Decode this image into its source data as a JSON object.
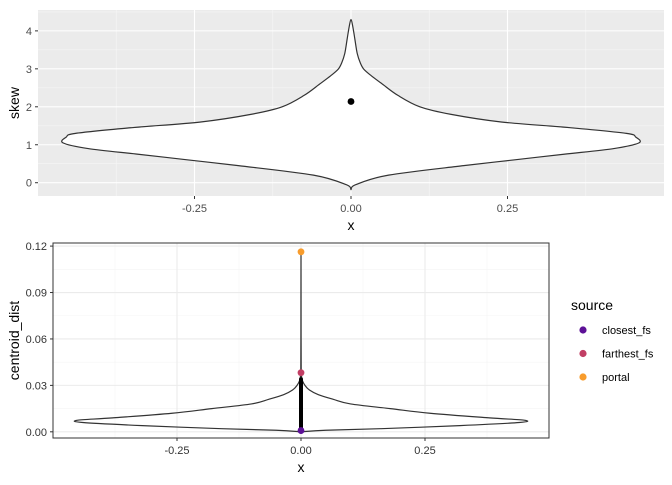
{
  "chart_data": [
    {
      "type": "violin",
      "xlabel": "x",
      "ylabel": "skew",
      "xlim": [
        -0.5,
        0.5
      ],
      "ylim": [
        -0.35,
        4.55
      ],
      "x_ticks": [
        -0.25,
        0.0,
        0.25
      ],
      "x_tick_labels": [
        "-0.25",
        "0.00",
        "0.25"
      ],
      "y_ticks": [
        0,
        1,
        2,
        3,
        4
      ],
      "y_tick_labels": [
        "0",
        "1",
        "2",
        "3",
        "4"
      ],
      "grid": true,
      "theme": "ggplot2 grey",
      "violin_x": 0.0,
      "density_profile": [
        {
          "y": -0.18,
          "half_width": 0.0
        },
        {
          "y": -0.05,
          "half_width": 0.008
        },
        {
          "y": 0.2,
          "half_width": 0.06
        },
        {
          "y": 0.45,
          "half_width": 0.18
        },
        {
          "y": 0.6,
          "half_width": 0.26
        },
        {
          "y": 0.75,
          "half_width": 0.34
        },
        {
          "y": 0.9,
          "half_width": 0.42
        },
        {
          "y": 1.05,
          "half_width": 0.46
        },
        {
          "y": 1.2,
          "half_width": 0.455
        },
        {
          "y": 1.3,
          "half_width": 0.44
        },
        {
          "y": 1.45,
          "half_width": 0.35
        },
        {
          "y": 1.6,
          "half_width": 0.24
        },
        {
          "y": 1.8,
          "half_width": 0.16
        },
        {
          "y": 2.0,
          "half_width": 0.11
        },
        {
          "y": 2.3,
          "half_width": 0.075
        },
        {
          "y": 2.6,
          "half_width": 0.05
        },
        {
          "y": 2.85,
          "half_width": 0.03
        },
        {
          "y": 3.0,
          "half_width": 0.02
        },
        {
          "y": 3.15,
          "half_width": 0.015
        },
        {
          "y": 3.4,
          "half_width": 0.01
        },
        {
          "y": 3.8,
          "half_width": 0.006
        },
        {
          "y": 4.1,
          "half_width": 0.003
        },
        {
          "y": 4.3,
          "half_width": 0.0
        }
      ],
      "points": [
        {
          "x": 0.0,
          "y": 2.14,
          "color": "#000000"
        }
      ]
    },
    {
      "type": "violin",
      "xlabel": "x",
      "ylabel": "centroid_dist",
      "xlim": [
        -0.5,
        0.5
      ],
      "ylim": [
        -0.004,
        0.122
      ],
      "x_ticks": [
        -0.25,
        0.0,
        0.25
      ],
      "x_tick_labels": [
        "-0.25",
        "0.00",
        "0.25"
      ],
      "y_ticks": [
        0.0,
        0.03,
        0.06,
        0.09,
        0.12
      ],
      "y_tick_labels": [
        "0.00",
        "0.03",
        "0.06",
        "0.09",
        "0.12"
      ],
      "grid": true,
      "theme": "ggplot2 bw",
      "violin_x": 0.0,
      "density_profile": [
        {
          "y": 0.0,
          "half_width": 0.0
        },
        {
          "y": 0.001,
          "half_width": 0.05
        },
        {
          "y": 0.002,
          "half_width": 0.16
        },
        {
          "y": 0.004,
          "half_width": 0.32
        },
        {
          "y": 0.006,
          "half_width": 0.44
        },
        {
          "y": 0.0075,
          "half_width": 0.45
        },
        {
          "y": 0.009,
          "half_width": 0.38
        },
        {
          "y": 0.012,
          "half_width": 0.26
        },
        {
          "y": 0.015,
          "half_width": 0.18
        },
        {
          "y": 0.018,
          "half_width": 0.1
        },
        {
          "y": 0.021,
          "half_width": 0.065
        },
        {
          "y": 0.024,
          "half_width": 0.035
        },
        {
          "y": 0.027,
          "half_width": 0.017
        },
        {
          "y": 0.03,
          "half_width": 0.008
        },
        {
          "y": 0.033,
          "half_width": 0.003
        },
        {
          "y": 0.036,
          "half_width": 0.001
        },
        {
          "y": 0.0385,
          "half_width": 0.0004
        },
        {
          "y": 0.06,
          "half_width": 0.0002
        },
        {
          "y": 0.1163,
          "half_width": 0.0
        }
      ],
      "point_column": {
        "x": 0.0,
        "y_from": 0.0,
        "y_to": 0.034,
        "color": "#000000"
      },
      "points": [
        {
          "x": 0.0,
          "y": 0.1163,
          "series": "portal",
          "color": "#f89c2c"
        },
        {
          "x": 0.0,
          "y": 0.0382,
          "series": "farthest_fs",
          "color": "#c13e64"
        },
        {
          "x": 0.0,
          "y": 0.0008,
          "series": "closest_fs",
          "color": "#5d1197"
        }
      ],
      "legend": {
        "title": "source",
        "placement": "right",
        "entries": [
          {
            "label": "closest_fs",
            "color": "#5d1197"
          },
          {
            "label": "farthest_fs",
            "color": "#c13e64"
          },
          {
            "label": "portal",
            "color": "#f89c2c"
          }
        ]
      }
    }
  ]
}
